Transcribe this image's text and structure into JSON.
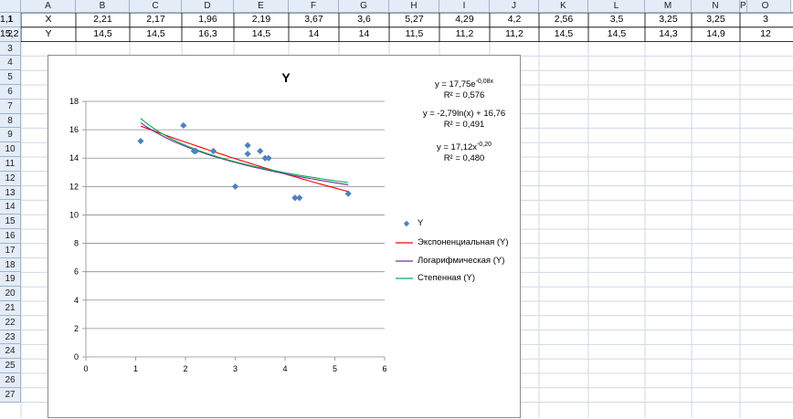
{
  "sheet": {
    "columns": [
      "A",
      "B",
      "C",
      "D",
      "E",
      "F",
      "G",
      "H",
      "I",
      "J",
      "K",
      "L",
      "M",
      "N",
      "O",
      "P"
    ],
    "rows": [
      "1",
      "2",
      "3",
      "4",
      "5",
      "6",
      "7",
      "8",
      "9",
      "10",
      "11",
      "12",
      "13",
      "14",
      "15",
      "16",
      "17",
      "18",
      "19",
      "20",
      "21",
      "22",
      "23",
      "24",
      "25",
      "26",
      "27"
    ],
    "row1": [
      "X",
      "2,21",
      "2,17",
      "1,96",
      "2,19",
      "3,67",
      "3,6",
      "5,27",
      "4,29",
      "4,2",
      "2,56",
      "3,5",
      "3,25",
      "3,25",
      "3",
      "1,1"
    ],
    "row2": [
      "Y",
      "14,5",
      "14,5",
      "16,3",
      "14,5",
      "14",
      "14",
      "11,5",
      "11,2",
      "11,2",
      "14,5",
      "14,5",
      "14,3",
      "14,9",
      "12",
      "15,2"
    ]
  },
  "colors": {
    "series": "#4f81bd",
    "exp": "#ff0000",
    "log": "#7030a0",
    "pow": "#00b050",
    "header_bg": "#e4ecf7",
    "gridline": "#d0d7e5"
  },
  "chart_data": {
    "type": "scatter",
    "title": "Y",
    "xlim": [
      0,
      6
    ],
    "ylim": [
      0,
      18
    ],
    "x_ticks": [
      "0",
      "1",
      "2",
      "3",
      "4",
      "5",
      "6"
    ],
    "y_ticks": [
      "0",
      "2",
      "4",
      "6",
      "8",
      "10",
      "12",
      "14",
      "16",
      "18"
    ],
    "grid": "horizontal",
    "legend_placement": "right",
    "series": [
      {
        "name": "Y",
        "x": [
          2.21,
          2.17,
          1.96,
          2.19,
          3.67,
          3.6,
          5.27,
          4.29,
          4.2,
          2.56,
          3.5,
          3.25,
          3.25,
          3,
          1.1
        ],
        "y": [
          14.5,
          14.5,
          16.3,
          14.5,
          14,
          14,
          11.5,
          11.2,
          11.2,
          14.5,
          14.5,
          14.3,
          14.9,
          12,
          15.2
        ]
      }
    ],
    "trendlines": [
      {
        "name": "Экспоненциальная (Y)",
        "kind": "exp",
        "a": 17.75,
        "b": -0.08,
        "eq": "y = 17,75e",
        "eq_sup": "-0,08x",
        "r2": "R² = 0,576"
      },
      {
        "name": "Логарифмическая (Y)",
        "kind": "log",
        "a": -2.79,
        "b": 16.76,
        "eq": "y = -2,79ln(x) + 16,76",
        "eq_sup": "",
        "r2": "R² = 0,491"
      },
      {
        "name": "Степенная (Y)",
        "kind": "pow",
        "a": 17.12,
        "b": -0.2,
        "eq": "y = 17,12x",
        "eq_sup": "-0,20",
        "r2": "R² = 0,480"
      }
    ]
  }
}
